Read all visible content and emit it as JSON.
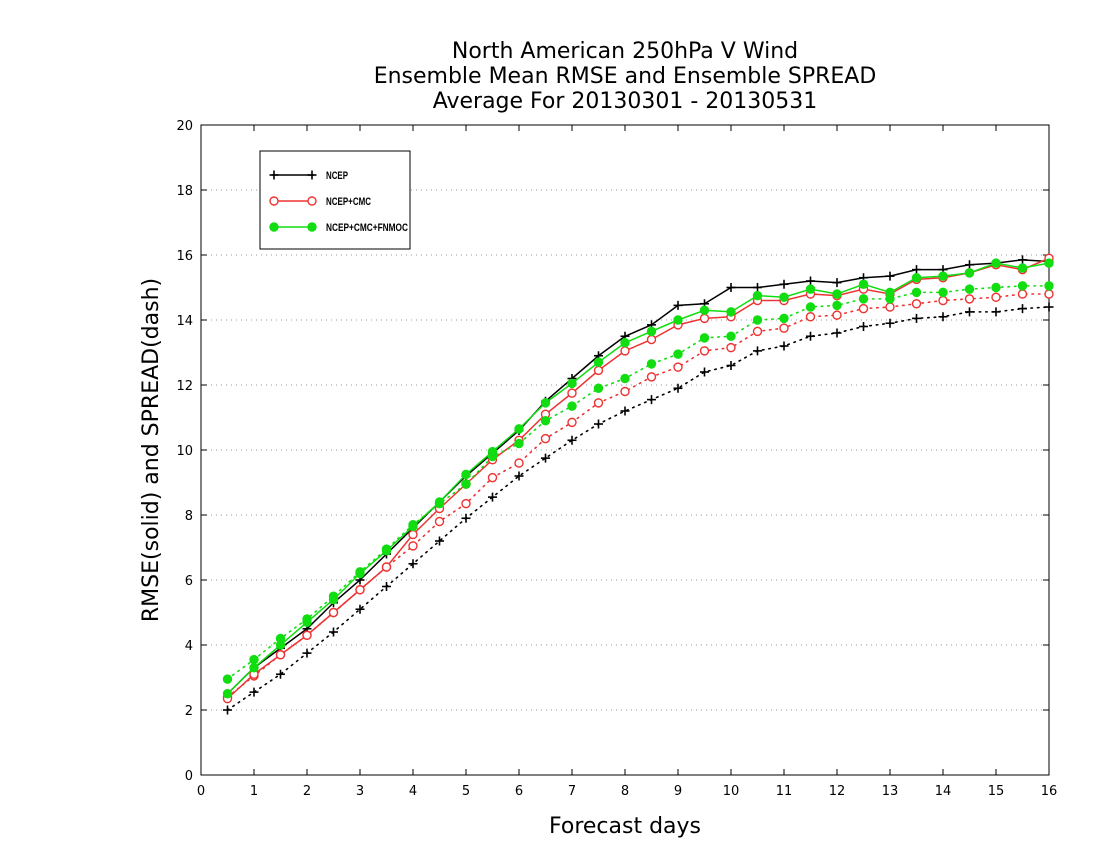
{
  "chart_data": {
    "type": "line",
    "title_lines": [
      "North American 250hPa V Wind",
      "Ensemble Mean RMSE and Ensemble SPREAD",
      "Average For 20130301 - 20130531"
    ],
    "xlabel": "Forecast days",
    "ylabel": "RMSE(solid) and SPREAD(dash)",
    "xlim": [
      0,
      16
    ],
    "ylim": [
      0,
      20
    ],
    "x_ticks": [
      "0",
      "1",
      "2",
      "3",
      "4",
      "5",
      "6",
      "7",
      "8",
      "9",
      "10",
      "11",
      "12",
      "13",
      "14",
      "15",
      "16"
    ],
    "y_ticks": [
      "0",
      "2",
      "4",
      "6",
      "8",
      "10",
      "12",
      "14",
      "16",
      "18",
      "20"
    ],
    "grid": "horizontal dotted",
    "legend_position": "top-left",
    "x": [
      0.5,
      1,
      1.5,
      2,
      2.5,
      3,
      3.5,
      4,
      4.5,
      5,
      5.5,
      6,
      6.5,
      7,
      7.5,
      8,
      8.5,
      9,
      9.5,
      10,
      10.5,
      11,
      11.5,
      12,
      12.5,
      13,
      13.5,
      14,
      14.5,
      15,
      15.5,
      16
    ],
    "series": [
      {
        "name": "NCEP",
        "color": "#000000",
        "marker": "plus",
        "rmse": [
          2.5,
          3.3,
          3.9,
          4.5,
          5.3,
          6.0,
          6.8,
          7.6,
          8.4,
          9.2,
          9.9,
          10.6,
          11.5,
          12.2,
          12.9,
          13.5,
          13.85,
          14.45,
          14.5,
          15.0,
          15.0,
          15.1,
          15.2,
          15.15,
          15.3,
          15.35,
          15.55,
          15.55,
          15.7,
          15.75,
          15.85,
          15.8
        ],
        "spread": [
          2.0,
          2.55,
          3.1,
          3.75,
          4.4,
          5.1,
          5.8,
          6.5,
          7.2,
          7.9,
          8.55,
          9.2,
          9.75,
          10.3,
          10.8,
          11.2,
          11.55,
          11.9,
          12.4,
          12.6,
          13.05,
          13.2,
          13.5,
          13.6,
          13.8,
          13.9,
          14.05,
          14.1,
          14.25,
          14.25,
          14.35,
          14.4
        ]
      },
      {
        "name": "NCEP+CMC",
        "color": "#ee3333",
        "marker": "open-circle",
        "rmse": [
          2.35,
          3.1,
          3.7,
          4.3,
          5.0,
          5.7,
          6.4,
          7.4,
          8.2,
          8.95,
          9.7,
          10.3,
          11.1,
          11.75,
          12.45,
          13.05,
          13.4,
          13.85,
          14.05,
          14.1,
          14.6,
          14.6,
          14.8,
          14.75,
          14.95,
          14.8,
          15.25,
          15.3,
          15.45,
          15.7,
          15.55,
          15.9
        ],
        "spread": [
          2.4,
          3.05,
          3.7,
          4.3,
          5.0,
          5.7,
          6.4,
          7.05,
          7.8,
          8.35,
          9.15,
          9.6,
          10.35,
          10.85,
          11.45,
          11.8,
          12.25,
          12.55,
          13.05,
          13.15,
          13.65,
          13.75,
          14.1,
          14.15,
          14.35,
          14.4,
          14.5,
          14.6,
          14.65,
          14.7,
          14.8,
          14.8
        ]
      },
      {
        "name": "NCEP+CMC+FNMOC",
        "color": "#11dd11",
        "marker": "filled-circle",
        "rmse": [
          2.5,
          3.3,
          4.0,
          4.7,
          5.4,
          6.2,
          6.9,
          7.65,
          8.4,
          9.25,
          9.95,
          10.65,
          11.45,
          12.05,
          12.7,
          13.3,
          13.65,
          14.0,
          14.3,
          14.25,
          14.75,
          14.7,
          14.95,
          14.8,
          15.1,
          14.85,
          15.3,
          15.35,
          15.45,
          15.75,
          15.6,
          15.75
        ],
        "spread": [
          2.95,
          3.55,
          4.2,
          4.8,
          5.5,
          6.25,
          6.95,
          7.7,
          8.35,
          8.95,
          9.8,
          10.2,
          10.9,
          11.35,
          11.9,
          12.2,
          12.65,
          12.95,
          13.45,
          13.5,
          14.0,
          14.05,
          14.4,
          14.45,
          14.65,
          14.65,
          14.85,
          14.85,
          14.95,
          15.0,
          15.05,
          15.05
        ]
      }
    ]
  }
}
